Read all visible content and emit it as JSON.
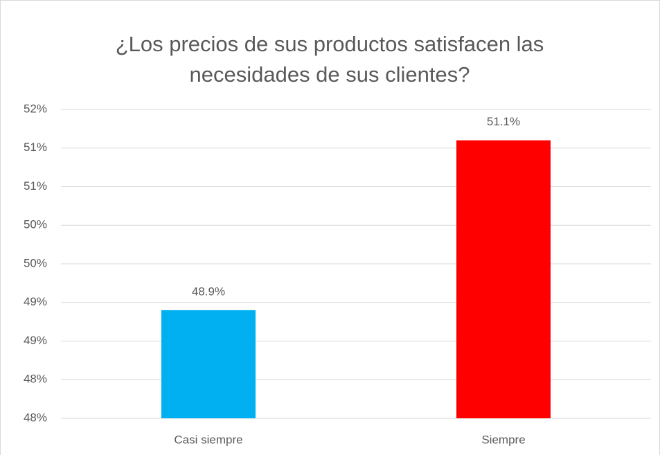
{
  "chart_data": {
    "type": "bar",
    "title": "¿Los precios de sus productos satisfacen las necesidades de sus clientes?",
    "categories": [
      "Casi siempre",
      "Siempre"
    ],
    "values": [
      48.9,
      51.1
    ],
    "value_labels": [
      "48.9%",
      "51.1%"
    ],
    "colors": [
      "#00b0f0",
      "#ff0000"
    ],
    "ylim": [
      47.5,
      51.5
    ],
    "yticks": [
      {
        "value": 47.5,
        "label": "48%"
      },
      {
        "value": 48,
        "label": "48%"
      },
      {
        "value": 48.5,
        "label": "49%"
      },
      {
        "value": 49,
        "label": "49%"
      },
      {
        "value": 49.5,
        "label": "50%"
      },
      {
        "value": 50,
        "label": "50%"
      },
      {
        "value": 50.5,
        "label": "51%"
      },
      {
        "value": 51,
        "label": "51%"
      },
      {
        "value": 51.5,
        "label": "52%"
      }
    ],
    "grid": true
  }
}
